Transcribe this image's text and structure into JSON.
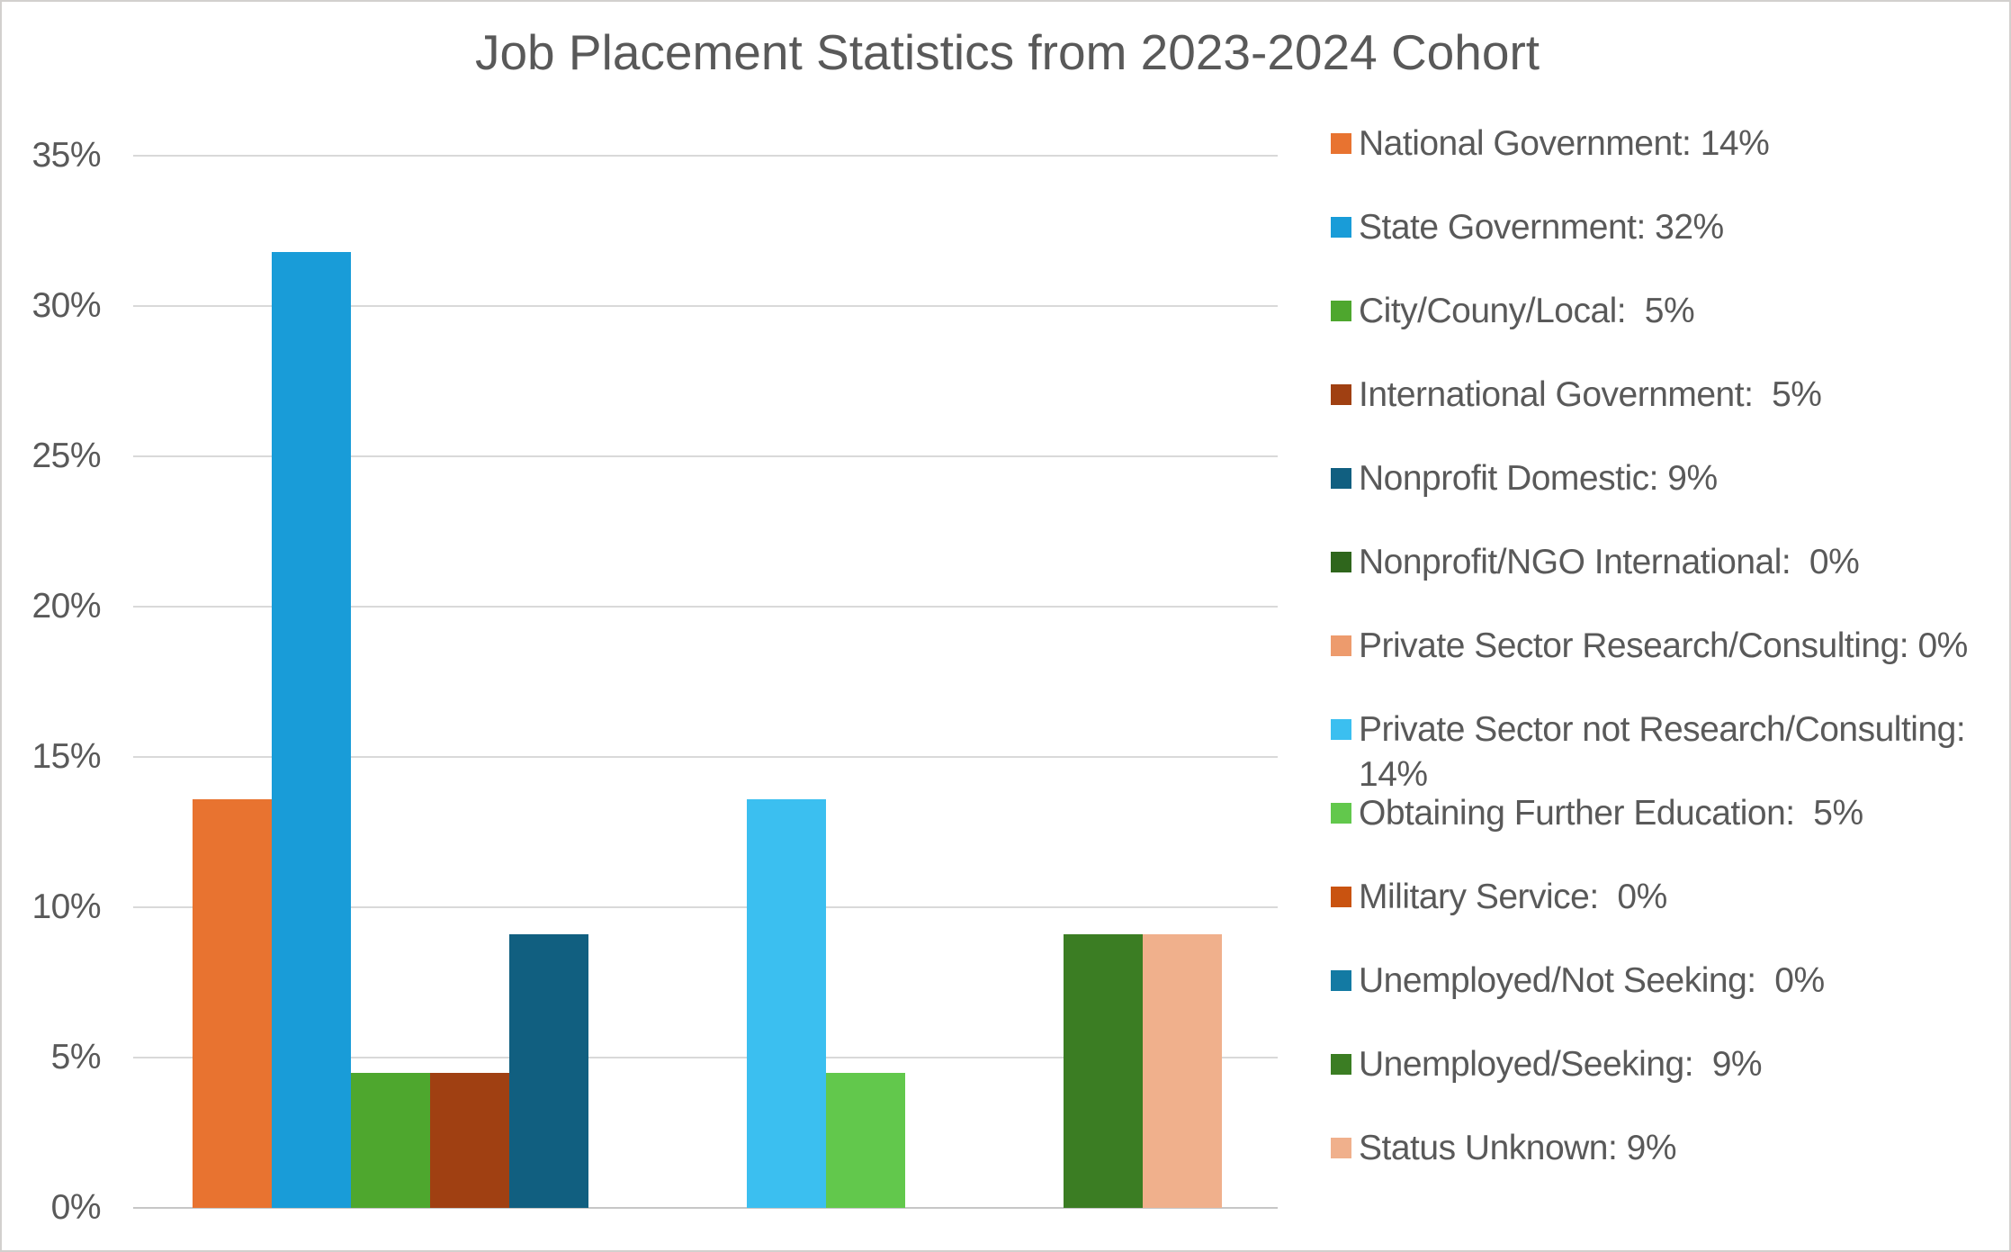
{
  "title": "Job Placement Statistics from 2023-2024 Cohort",
  "chart_data": {
    "type": "bar",
    "title": "Job Placement Statistics from 2023-2024 Cohort",
    "xlabel": "",
    "ylabel": "",
    "ylim": [
      0,
      35
    ],
    "y_ticks": [
      "35%",
      "30%",
      "25%",
      "20%",
      "15%",
      "10%",
      "5%",
      "0%"
    ],
    "grid": "horizontal-only",
    "legend_position": "right",
    "gridline_color": "#d9d9d9",
    "text_color": "#595959",
    "series": [
      {
        "name": "National Government",
        "value": 13.6,
        "legend_percent": "14%",
        "color": "#e87330",
        "display": "National Government: 14%"
      },
      {
        "name": "State Government",
        "value": 31.8,
        "legend_percent": "32%",
        "color": "#199cd8",
        "display": "State Government: 32%"
      },
      {
        "name": "City/Couny/Local",
        "value": 4.5,
        "legend_percent": "5%",
        "color": "#4ea72e",
        "display": "City/Couny/Local:  5%"
      },
      {
        "name": "International Government",
        "value": 4.5,
        "legend_percent": "5%",
        "color": "#a04012",
        "display": "International Government:  5%"
      },
      {
        "name": "Nonprofit Domestic",
        "value": 9.1,
        "legend_percent": "9%",
        "color": "#115f80",
        "display": "Nonprofit Domestic: 9%"
      },
      {
        "name": "Nonprofit/NGO International",
        "value": 0,
        "legend_percent": "0%",
        "color": "#2f661c",
        "display": "Nonprofit/NGO International:  0%"
      },
      {
        "name": "Private Sector Research/Consulting",
        "value": 0,
        "legend_percent": "0%",
        "color": "#ed9b6d",
        "display": "Private Sector Research/Consulting: 0%"
      },
      {
        "name": "Private Sector not Research/Consulting",
        "value": 13.6,
        "legend_percent": "14%",
        "color": "#3bbff0",
        "display": "Private Sector not Research/Consulting:\n14%"
      },
      {
        "name": "Obtaining Further Education",
        "value": 4.5,
        "legend_percent": "5%",
        "color": "#62c84c",
        "display": "Obtaining Further Education:  5%"
      },
      {
        "name": "Military Service",
        "value": 0,
        "legend_percent": "0%",
        "color": "#c95310",
        "display": "Military Service:  0%"
      },
      {
        "name": "Unemployed/Not Seeking",
        "value": 0,
        "legend_percent": "0%",
        "color": "#137aa3",
        "display": "Unemployed/Not Seeking:  0%"
      },
      {
        "name": "Unemployed/Seeking",
        "value": 9.1,
        "legend_percent": "9%",
        "color": "#3b7d23",
        "display": "Unemployed/Seeking:  9%"
      },
      {
        "name": "Status Unknown",
        "value": 9.1,
        "legend_percent": "9%",
        "color": "#f0b08c",
        "display": "Status Unknown: 9%"
      }
    ]
  }
}
